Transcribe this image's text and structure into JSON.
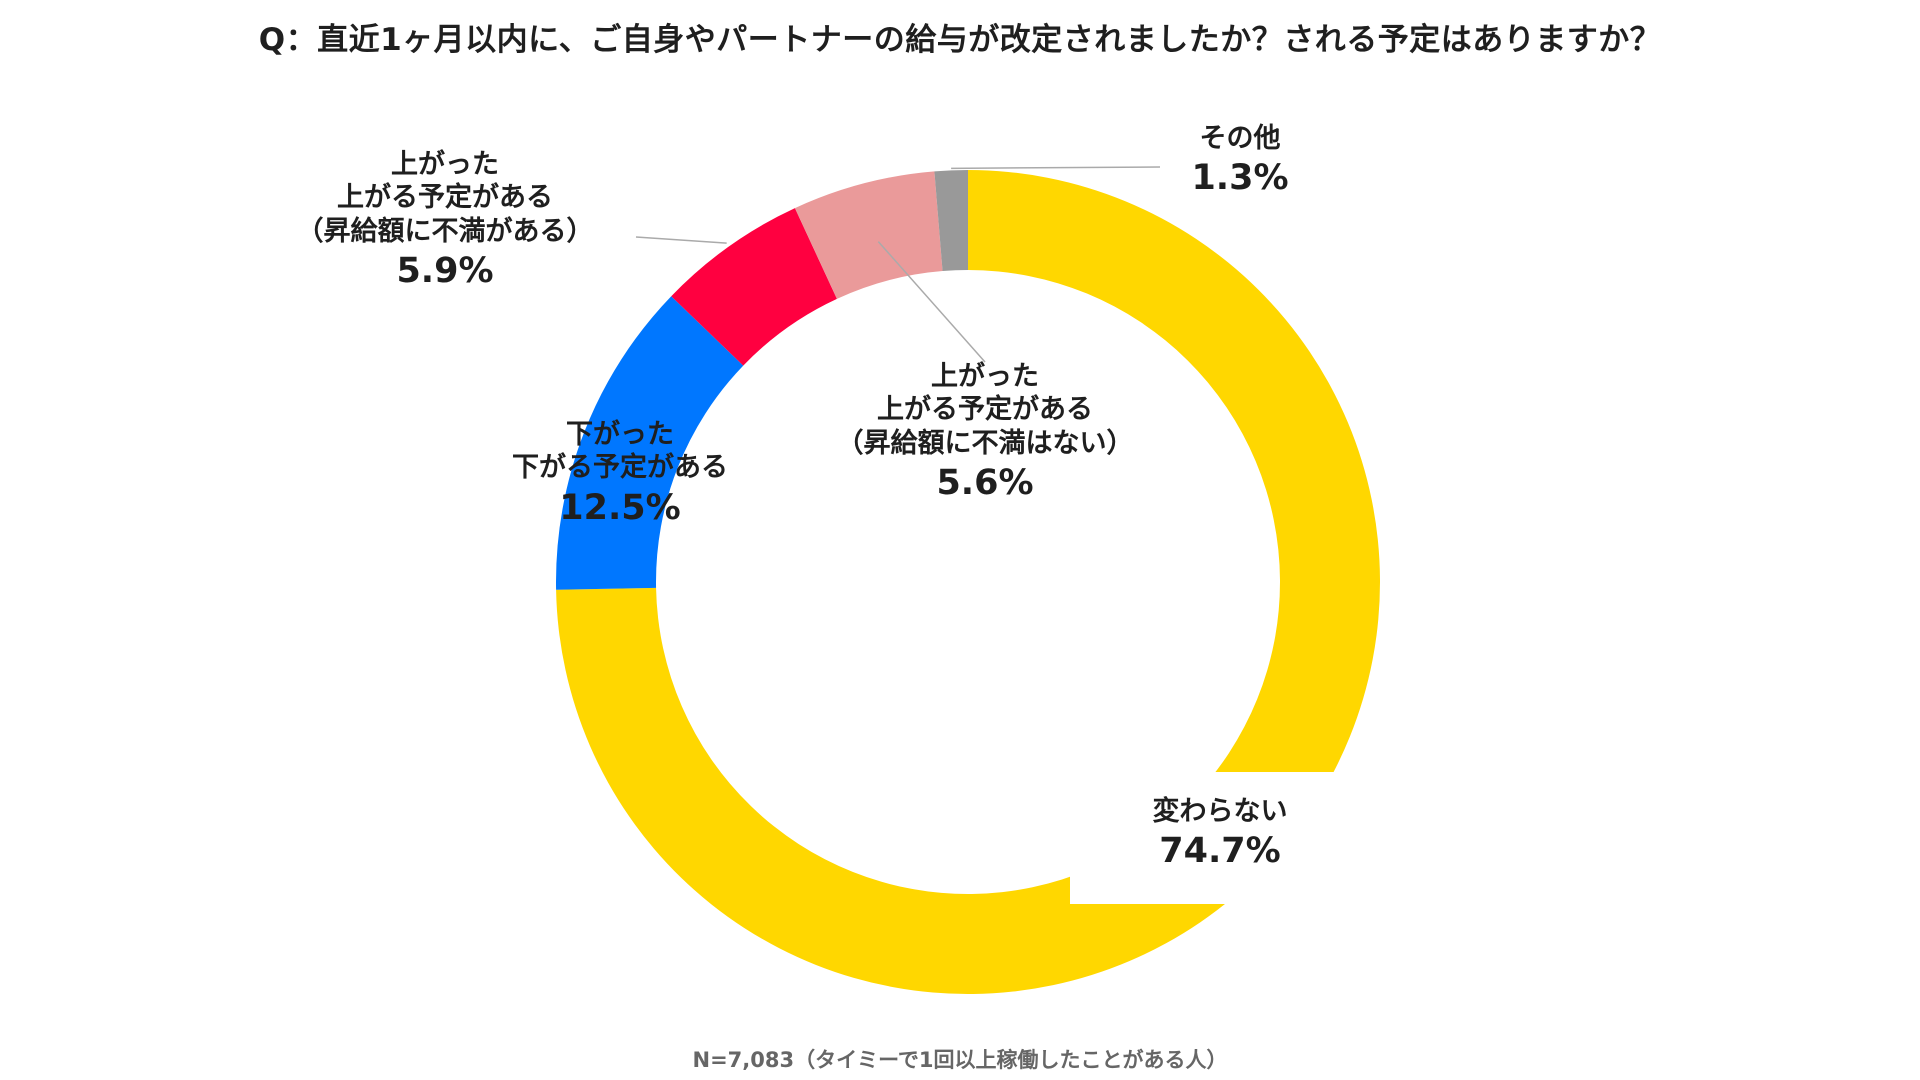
{
  "title": "Q：直近1ヶ月以内に、ご自身やパートナーの給与が改定されましたか？される予定はありますか？",
  "footnote": "N=7,083（タイミーで1回以上稼働したことがある人）",
  "chart_data": {
    "type": "pie",
    "donut": true,
    "title": "Q：直近1ヶ月以内に、ご自身やパートナーの給与が改定されましたか？される予定はありますか？",
    "slices": [
      {
        "lines": [
          "変わらない"
        ],
        "value": 74.7,
        "value_label": "74.7%",
        "color": "#FFD700"
      },
      {
        "lines": [
          "下がった",
          "下がる予定がある"
        ],
        "value": 12.5,
        "value_label": "12.5%",
        "color": "#0077FF"
      },
      {
        "lines": [
          "上がった",
          "上がる予定がある",
          "（昇給額に不満がある）"
        ],
        "value": 5.9,
        "value_label": "5.9%",
        "color": "#FF0040"
      },
      {
        "lines": [
          "上がった",
          "上がる予定がある",
          "（昇給額に不満はない）"
        ],
        "value": 5.6,
        "value_label": "5.6%",
        "color": "#EA9A9A"
      },
      {
        "lines": [
          "その他"
        ],
        "value": 1.3,
        "value_label": "1.3%",
        "color": "#999999"
      }
    ],
    "legend": "none"
  }
}
